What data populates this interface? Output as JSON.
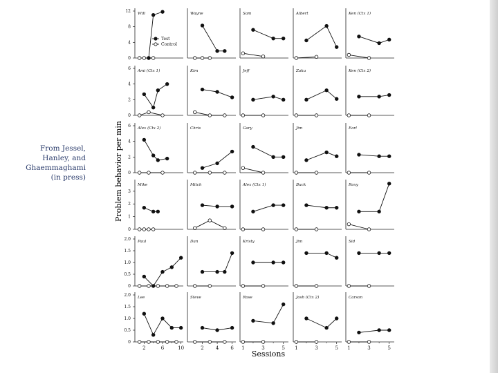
{
  "caption": {
    "lines": [
      "From Jessel,",
      "Hanley, and",
      "Ghaemmaghami",
      "(in press)"
    ]
  },
  "chart_data": {
    "type": "line",
    "layout": "small-multiples grid, 6 rows x 5 columns",
    "ylabel": "Problem behavior per min",
    "xlabel": "Sessions",
    "legend": {
      "entries": [
        "Test",
        "Control"
      ],
      "placement": "inside first panel, lower right"
    },
    "rows": [
      {
        "yticks": [
          "0",
          "4",
          "8",
          "12"
        ],
        "ymax": 12
      },
      {
        "yticks": [
          "0",
          "2",
          "4",
          "6"
        ],
        "ymax": 6
      },
      {
        "yticks": [
          "0",
          "2",
          "4",
          "6"
        ],
        "ymax": 6
      },
      {
        "yticks": [
          "0",
          "1",
          "2",
          "3"
        ],
        "ymax": 3.7
      },
      {
        "yticks": [
          "0",
          "0.5",
          "1.0",
          "1.5",
          "2.0"
        ],
        "ymax": 2.0
      },
      {
        "yticks": [
          "0",
          "0.5",
          "1.0",
          "1.5",
          "2.0"
        ],
        "ymax": 2.0
      }
    ],
    "columns": [
      {
        "xmin": 0,
        "xmax": 10.5,
        "xticks": [
          "2",
          "6",
          "10"
        ],
        "xtick_values": [
          2,
          6,
          10
        ],
        "minor": [
          4,
          8
        ]
      },
      {
        "xmin": 0,
        "xmax": 6.5,
        "xticks": [
          "2",
          "4",
          "6"
        ],
        "xtick_values": [
          2,
          4,
          6
        ],
        "minor": [
          1,
          3,
          5
        ]
      },
      {
        "xmin": 0.7,
        "xmax": 5.5,
        "xticks": [
          "1",
          "3",
          "5"
        ],
        "xtick_values": [
          1,
          3,
          5
        ],
        "minor": [
          2,
          4
        ]
      },
      {
        "xmin": 0.7,
        "xmax": 5.5,
        "xticks": [
          "1",
          "3",
          "5"
        ],
        "xtick_values": [
          1,
          3,
          5
        ],
        "minor": [
          2,
          4
        ]
      },
      {
        "xmin": 0.7,
        "xmax": 5.5,
        "xticks": [
          "1",
          "3",
          "5"
        ],
        "xtick_values": [
          1,
          3,
          5
        ],
        "minor": [
          2,
          4
        ]
      }
    ],
    "panels": [
      {
        "name": "Will",
        "row": 0,
        "col": 0,
        "test": {
          "x": [
            3,
            4,
            6
          ],
          "y": [
            0,
            11,
            11.8
          ]
        },
        "control": {
          "x": [
            1,
            2,
            3,
            4
          ],
          "y": [
            0,
            0,
            0,
            0
          ]
        }
      },
      {
        "name": "Wayne",
        "row": 0,
        "col": 1,
        "test": {
          "x": [
            2,
            4,
            5
          ],
          "y": [
            8.3,
            1.8,
            1.8
          ]
        },
        "control": {
          "x": [
            1,
            2,
            3
          ],
          "y": [
            0,
            0,
            0
          ]
        }
      },
      {
        "name": "Sam",
        "row": 0,
        "col": 2,
        "test": {
          "x": [
            2,
            4,
            5
          ],
          "y": [
            7.2,
            5,
            5
          ]
        },
        "control": {
          "x": [
            1,
            3
          ],
          "y": [
            1.2,
            0.4
          ]
        }
      },
      {
        "name": "Albert",
        "row": 0,
        "col": 3,
        "test": {
          "x": [
            2,
            4,
            5
          ],
          "y": [
            4.5,
            8.2,
            2.8
          ]
        },
        "control": {
          "x": [
            1,
            3
          ],
          "y": [
            0,
            0.3
          ]
        }
      },
      {
        "name": "Ken (Ctx 1)",
        "row": 0,
        "col": 4,
        "test": {
          "x": [
            2,
            4,
            5
          ],
          "y": [
            5.5,
            3.8,
            4.7
          ]
        },
        "control": {
          "x": [
            1,
            3
          ],
          "y": [
            0.8,
            0
          ]
        }
      },
      {
        "name": "Ami (Ctx 1)",
        "row": 1,
        "col": 0,
        "test": {
          "x": [
            2,
            4,
            5,
            7
          ],
          "y": [
            2.7,
            1,
            3.2,
            4
          ]
        },
        "control": {
          "x": [
            1,
            3,
            6
          ],
          "y": [
            0,
            0.4,
            0
          ]
        }
      },
      {
        "name": "Kim",
        "row": 1,
        "col": 1,
        "test": {
          "x": [
            2,
            4,
            6
          ],
          "y": [
            3.3,
            3,
            2.3
          ]
        },
        "control": {
          "x": [
            1,
            3,
            5
          ],
          "y": [
            0.4,
            0,
            0
          ]
        }
      },
      {
        "name": "Jeff",
        "row": 1,
        "col": 2,
        "test": {
          "x": [
            2,
            4,
            5
          ],
          "y": [
            2,
            2.4,
            2
          ]
        },
        "control": {
          "x": [
            1,
            3
          ],
          "y": [
            0,
            0
          ]
        }
      },
      {
        "name": "Zaku",
        "row": 1,
        "col": 3,
        "test": {
          "x": [
            2,
            4,
            5
          ],
          "y": [
            2,
            3.2,
            2.1
          ]
        },
        "control": {
          "x": [
            1,
            3
          ],
          "y": [
            0,
            0
          ]
        }
      },
      {
        "name": "Ken (Ctx 2)",
        "row": 1,
        "col": 4,
        "test": {
          "x": [
            2,
            4,
            5
          ],
          "y": [
            2.4,
            2.4,
            2.6
          ]
        },
        "control": {
          "x": [
            1,
            3
          ],
          "y": [
            0,
            0
          ]
        }
      },
      {
        "name": "Alex (Ctx 2)",
        "row": 2,
        "col": 0,
        "test": {
          "x": [
            2,
            4,
            5,
            7
          ],
          "y": [
            4.2,
            2.2,
            1.6,
            1.8
          ]
        },
        "control": {
          "x": [
            1,
            3,
            6
          ],
          "y": [
            0,
            0,
            0
          ]
        }
      },
      {
        "name": "Chris",
        "row": 2,
        "col": 1,
        "test": {
          "x": [
            2,
            4,
            6
          ],
          "y": [
            0.6,
            1.2,
            2.7
          ]
        },
        "control": {
          "x": [
            1,
            3,
            5
          ],
          "y": [
            0,
            0,
            0
          ]
        }
      },
      {
        "name": "Gary",
        "row": 2,
        "col": 2,
        "test": {
          "x": [
            2,
            4,
            5
          ],
          "y": [
            3.3,
            2,
            2
          ]
        },
        "control": {
          "x": [
            1,
            3
          ],
          "y": [
            0.6,
            0
          ]
        }
      },
      {
        "name": "Jim",
        "row": 2,
        "col": 3,
        "test": {
          "x": [
            2,
            4,
            5
          ],
          "y": [
            1.6,
            2.6,
            2.1
          ]
        },
        "control": {
          "x": [
            1,
            3
          ],
          "y": [
            0,
            0
          ]
        }
      },
      {
        "name": "Earl",
        "row": 2,
        "col": 4,
        "test": {
          "x": [
            2,
            4,
            5
          ],
          "y": [
            2.3,
            2.1,
            2.1
          ]
        },
        "control": {
          "x": [
            1,
            3
          ],
          "y": [
            0,
            0
          ]
        }
      },
      {
        "name": "Mike",
        "row": 3,
        "col": 0,
        "test": {
          "x": [
            2,
            4,
            5
          ],
          "y": [
            1.7,
            1.4,
            1.4
          ]
        },
        "control": {
          "x": [
            1,
            2,
            3,
            4
          ],
          "y": [
            0,
            0,
            0,
            0
          ]
        }
      },
      {
        "name": "Mitch",
        "row": 3,
        "col": 1,
        "test": {
          "x": [
            2,
            4,
            6
          ],
          "y": [
            1.9,
            1.8,
            1.8
          ]
        },
        "control": {
          "x": [
            1,
            3,
            5
          ],
          "y": [
            0.1,
            0.7,
            0.1
          ]
        }
      },
      {
        "name": "Alex (Ctx 1)",
        "row": 3,
        "col": 2,
        "test": {
          "x": [
            2,
            4,
            5
          ],
          "y": [
            1.4,
            1.9,
            1.9
          ]
        },
        "control": {
          "x": [
            1,
            3
          ],
          "y": [
            0,
            0
          ]
        }
      },
      {
        "name": "Buck",
        "row": 3,
        "col": 3,
        "test": {
          "x": [
            2,
            4,
            5
          ],
          "y": [
            1.9,
            1.7,
            1.7
          ]
        },
        "control": {
          "x": [
            1,
            3
          ],
          "y": [
            0,
            0
          ]
        }
      },
      {
        "name": "Roxy",
        "row": 3,
        "col": 4,
        "test": {
          "x": [
            2,
            4,
            5
          ],
          "y": [
            1.4,
            1.4,
            3.6
          ]
        },
        "control": {
          "x": [
            1,
            3
          ],
          "y": [
            0.4,
            0
          ]
        }
      },
      {
        "name": "Paul",
        "row": 4,
        "col": 0,
        "test": {
          "x": [
            2,
            4,
            6,
            8,
            10
          ],
          "y": [
            0.4,
            0,
            0.6,
            0.8,
            1.2
          ]
        },
        "control": {
          "x": [
            1,
            3,
            5,
            7,
            9
          ],
          "y": [
            0,
            0,
            0,
            0,
            0
          ]
        }
      },
      {
        "name": "Dan",
        "row": 4,
        "col": 1,
        "test": {
          "x": [
            2,
            4,
            5,
            6
          ],
          "y": [
            0.6,
            0.6,
            0.6,
            1.4
          ]
        },
        "control": {
          "x": [
            1,
            3
          ],
          "y": [
            0,
            0
          ]
        }
      },
      {
        "name": "Kristy",
        "row": 4,
        "col": 2,
        "test": {
          "x": [
            2,
            4,
            5
          ],
          "y": [
            1,
            1,
            1
          ]
        },
        "control": {
          "x": [
            1,
            3
          ],
          "y": [
            0,
            0
          ]
        }
      },
      {
        "name": "Jim",
        "row": 4,
        "col": 3,
        "test": {
          "x": [
            2,
            4,
            5
          ],
          "y": [
            1.4,
            1.4,
            1.2
          ]
        },
        "control": {
          "x": [
            1,
            3
          ],
          "y": [
            0,
            0
          ]
        }
      },
      {
        "name": "Sid",
        "row": 4,
        "col": 4,
        "test": {
          "x": [
            2,
            4,
            5
          ],
          "y": [
            1.4,
            1.4,
            1.4
          ]
        },
        "control": {
          "x": [
            1,
            3
          ],
          "y": [
            0,
            0
          ]
        }
      },
      {
        "name": "Lee",
        "row": 5,
        "col": 0,
        "test": {
          "x": [
            2,
            4,
            6,
            8,
            10
          ],
          "y": [
            1.2,
            0.3,
            1,
            0.6,
            0.6
          ]
        },
        "control": {
          "x": [
            1,
            3,
            5,
            7,
            9
          ],
          "y": [
            0,
            0,
            0,
            0,
            0
          ]
        }
      },
      {
        "name": "Steve",
        "row": 5,
        "col": 1,
        "test": {
          "x": [
            2,
            4,
            6
          ],
          "y": [
            0.6,
            0.5,
            0.6
          ]
        },
        "control": {
          "x": [
            1,
            3,
            5
          ],
          "y": [
            0,
            0,
            0
          ]
        }
      },
      {
        "name": "Rose",
        "row": 5,
        "col": 2,
        "test": {
          "x": [
            2,
            4,
            5
          ],
          "y": [
            0.9,
            0.8,
            1.6
          ]
        },
        "control": {
          "x": [
            1,
            3
          ],
          "y": [
            0,
            0
          ]
        }
      },
      {
        "name": "Josh (Ctx 2)",
        "row": 5,
        "col": 3,
        "test": {
          "x": [
            2,
            4,
            5
          ],
          "y": [
            1,
            0.6,
            1
          ]
        },
        "control": {
          "x": [
            1,
            3
          ],
          "y": [
            0,
            0
          ]
        }
      },
      {
        "name": "Carson",
        "row": 5,
        "col": 4,
        "test": {
          "x": [
            2,
            4,
            5
          ],
          "y": [
            0.4,
            0.5,
            0.5
          ]
        },
        "control": {
          "x": [
            1,
            3
          ],
          "y": [
            0,
            0
          ]
        }
      }
    ]
  }
}
